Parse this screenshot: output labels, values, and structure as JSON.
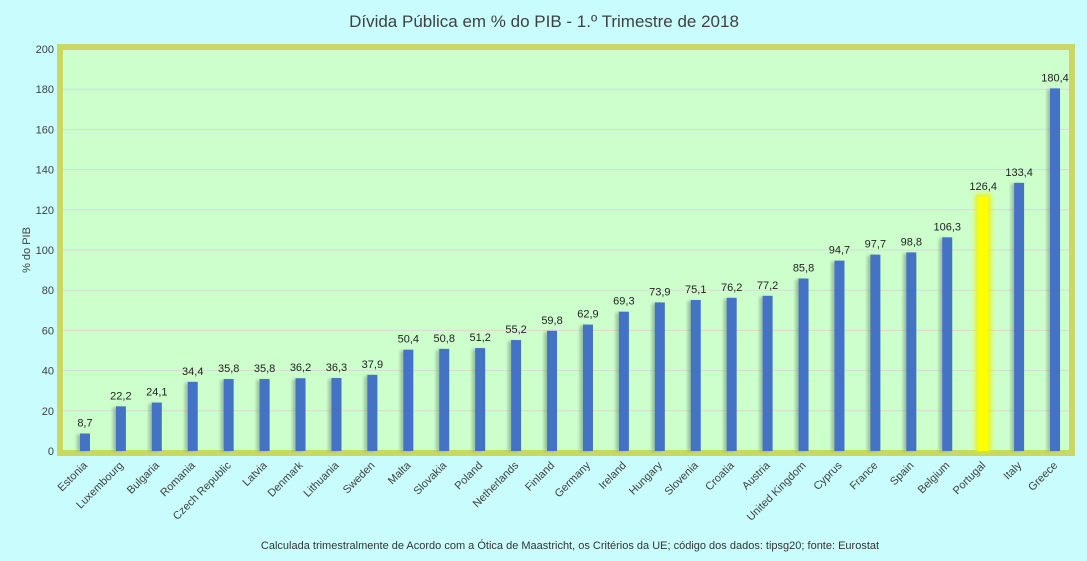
{
  "chart_data": {
    "type": "bar",
    "title": "Dívida Pública em % do PIB - 1.º Trimestre de 2018",
    "ylabel": "% do PIB",
    "xlabel": "",
    "ylim": [
      0,
      200
    ],
    "yticks": [
      0,
      20,
      40,
      60,
      80,
      100,
      120,
      140,
      160,
      180,
      200
    ],
    "grid": true,
    "legend": "none",
    "categories": [
      "Estonia",
      "Luxembourg",
      "Bulgaria",
      "Romania",
      "Czech Republic",
      "Latvia",
      "Denmark",
      "Lithuania",
      "Sweden",
      "Malta",
      "Slovakia",
      "Poland",
      "Netherlands",
      "Finland",
      "Germany",
      "Ireland",
      "Hungary",
      "Slovenia",
      "Croatia",
      "Austria",
      "United Kingdom",
      "Cyprus",
      "France",
      "Spain",
      "Belgium",
      "Portugal",
      "Italy",
      "Greece"
    ],
    "values": [
      8.7,
      22.2,
      24.1,
      34.4,
      35.8,
      35.8,
      36.2,
      36.3,
      37.9,
      50.4,
      50.8,
      51.2,
      55.2,
      59.8,
      62.9,
      69.3,
      73.9,
      75.1,
      76.2,
      77.2,
      85.8,
      94.7,
      97.7,
      98.8,
      106.3,
      126.4,
      133.4,
      180.4
    ],
    "value_labels": [
      "8,7",
      "22,2",
      "24,1",
      "34,4",
      "35,8",
      "35,8",
      "36,2",
      "36,3",
      "37,9",
      "50,4",
      "50,8",
      "51,2",
      "55,2",
      "59,8",
      "62,9",
      "69,3",
      "73,9",
      "75,1",
      "76,2",
      "77,2",
      "85,8",
      "94,7",
      "97,7",
      "98,8",
      "106,3",
      "126,4",
      "133,4",
      "180,4"
    ],
    "highlight": "Portugal",
    "note": "Calculada trimestralmente de Acordo com a Ótica de Maastricht, os Critérios da UE; código dos dados: tipsg20; fonte: Eurostat",
    "colors": {
      "bar": "#4472c4",
      "highlight_bar": "#ffff00",
      "plot_background": "#ccffcc",
      "page_background": "#c9fdfd",
      "plot_border": "#c8d862",
      "gridline": "#d8d8d8"
    }
  }
}
